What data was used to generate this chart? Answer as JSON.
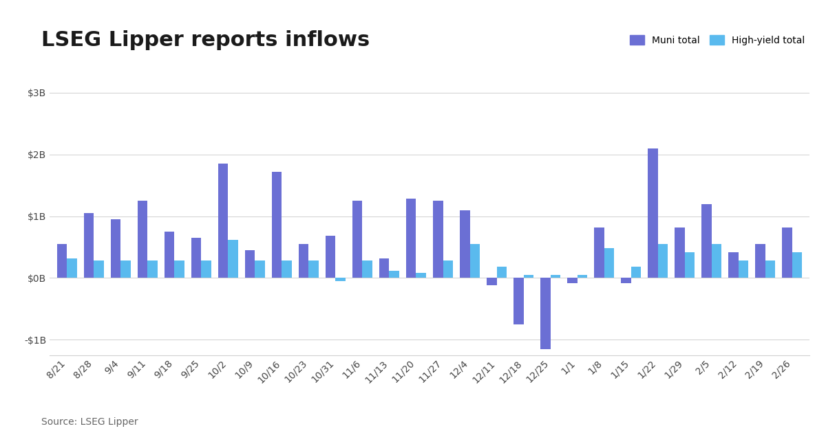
{
  "title": "LSEG Lipper reports inflows",
  "source": "Source: LSEG Lipper",
  "categories": [
    "8/21",
    "8/28",
    "9/4",
    "9/11",
    "9/18",
    "9/25",
    "10/2",
    "10/9",
    "10/16",
    "10/23",
    "10/31",
    "11/6",
    "11/13",
    "11/20",
    "11/27",
    "12/4",
    "12/11",
    "12/18",
    "12/25",
    "1/1",
    "1/8",
    "1/15",
    "1/22",
    "1/29",
    "2/5",
    "2/12",
    "2/19",
    "2/26"
  ],
  "muni_total": [
    0.55,
    1.05,
    0.95,
    1.25,
    0.75,
    0.65,
    1.85,
    0.45,
    1.72,
    0.55,
    0.68,
    1.25,
    0.32,
    1.28,
    1.25,
    1.1,
    -0.12,
    -0.75,
    -1.15,
    -0.08,
    0.82,
    -0.08,
    2.1,
    0.82,
    1.2,
    0.42,
    0.55,
    0.82
  ],
  "hy_total": [
    0.32,
    0.28,
    0.28,
    0.28,
    0.28,
    0.28,
    0.62,
    0.28,
    0.28,
    0.28,
    -0.05,
    0.28,
    0.12,
    0.08,
    0.28,
    0.55,
    0.18,
    0.05,
    0.05,
    0.05,
    0.48,
    0.18,
    0.55,
    0.42,
    0.55,
    0.28,
    0.28,
    0.42
  ],
  "muni_color": "#6b6fd4",
  "hy_color": "#5abaee",
  "ylim": [
    -1.25,
    3.1
  ],
  "yticks": [
    -1.0,
    0.0,
    1.0,
    2.0,
    3.0
  ],
  "ytick_labels": [
    "-$1B",
    "$0B",
    "$1B",
    "$2B",
    "$3B"
  ],
  "legend_muni": "Muni total",
  "legend_hy": "High-yield total",
  "title_fontsize": 22,
  "axis_fontsize": 10,
  "source_fontsize": 10,
  "bar_width": 0.38,
  "background_color": "#ffffff",
  "grid_color": "#d0d0d0"
}
